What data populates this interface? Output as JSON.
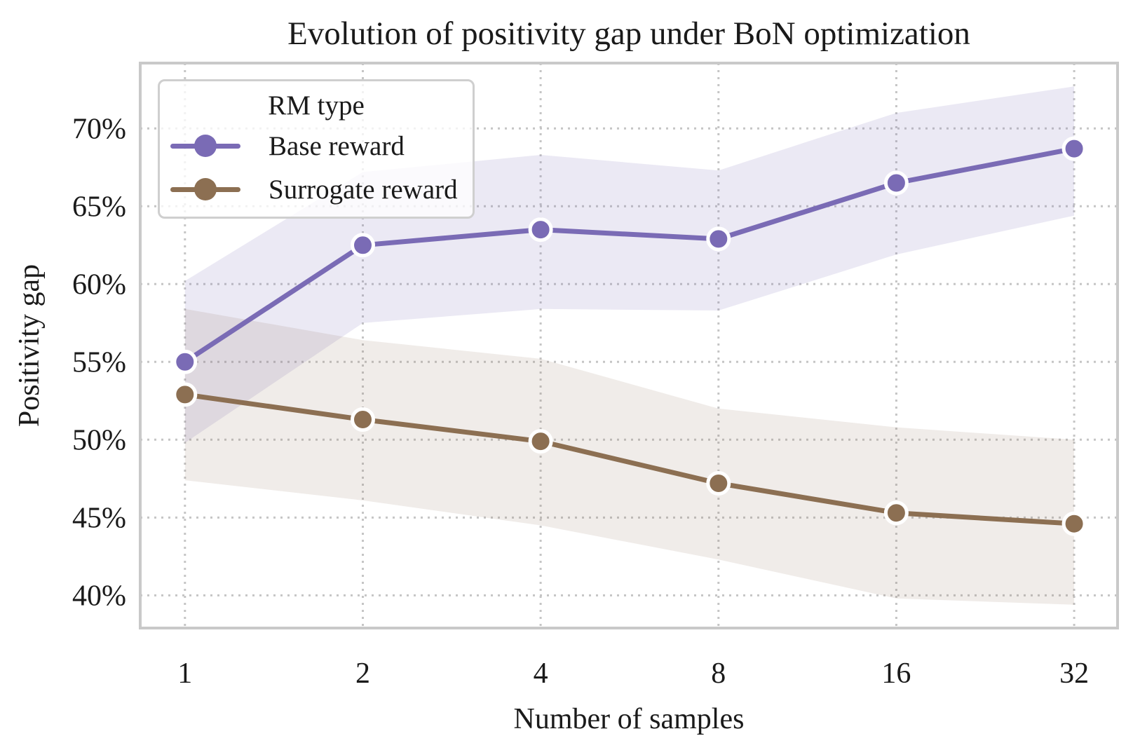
{
  "chart_data": {
    "type": "line",
    "title": "Evolution of positivity gap under BoN optimization",
    "xlabel": "Number of samples",
    "ylabel": "Positivity gap",
    "x_scale": "log2",
    "x": [
      1,
      2,
      4,
      8,
      16,
      32
    ],
    "categories": [
      "1",
      "2",
      "4",
      "8",
      "16",
      "32"
    ],
    "xlim": [
      0.84,
      37.9
    ],
    "ylim": [
      37.9,
      74.2
    ],
    "yticks": [
      40,
      45,
      50,
      55,
      60,
      65,
      70
    ],
    "ytick_labels": [
      "40%",
      "45%",
      "50%",
      "55%",
      "60%",
      "65%",
      "70%"
    ],
    "grid": "dotted",
    "legend": {
      "title": "RM type",
      "position": "upper-left"
    },
    "series": [
      {
        "name": "Base reward",
        "color": "#7a6bb5",
        "band_opacity": 0.15,
        "values": [
          55.0,
          62.5,
          63.5,
          62.9,
          66.5,
          68.7
        ],
        "band_low": [
          49.8,
          57.5,
          58.4,
          58.3,
          61.9,
          64.4
        ],
        "band_high": [
          60.2,
          67.2,
          68.3,
          67.3,
          71.0,
          72.7
        ]
      },
      {
        "name": "Surrogate reward",
        "color": "#8c6f52",
        "band_opacity": 0.13,
        "values": [
          52.9,
          51.3,
          49.9,
          47.2,
          45.3,
          44.6
        ],
        "band_low": [
          47.4,
          46.1,
          44.5,
          42.3,
          39.8,
          39.4
        ],
        "band_high": [
          58.4,
          56.4,
          55.2,
          52.0,
          50.8,
          50.0
        ]
      }
    ],
    "style": {
      "grid_color": "#c5c5c5",
      "spine_color": "#c9c9c9",
      "text_color": "#1a1a1a",
      "background": "#ffffff"
    }
  }
}
